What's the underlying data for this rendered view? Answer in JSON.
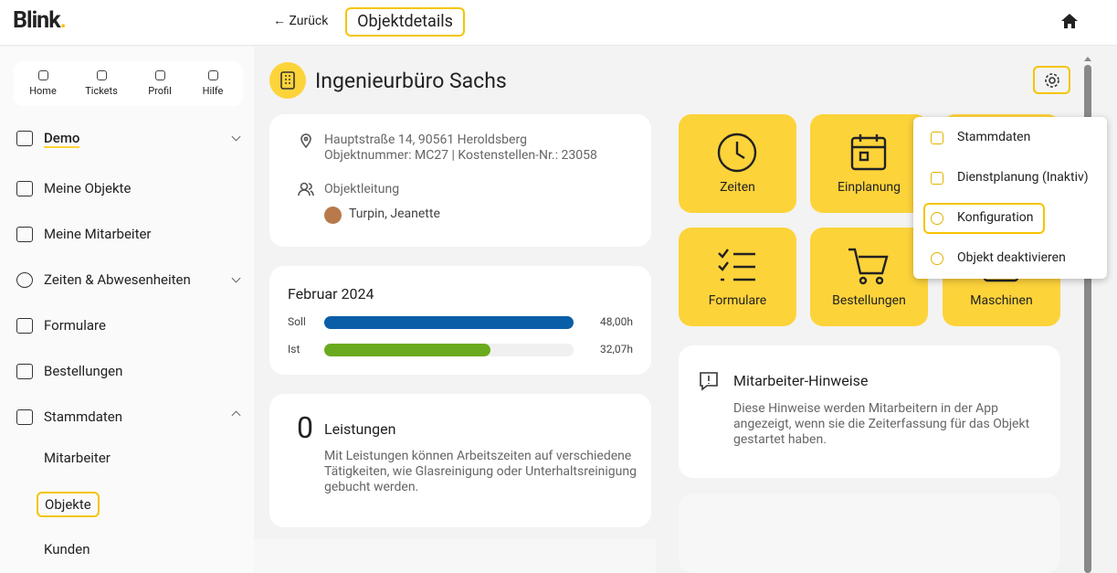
{
  "header": {
    "logo": "Blink",
    "back": "← Zurück",
    "title": "Objektdetails"
  },
  "quicknav": [
    "Home",
    "Tickets",
    "Profil",
    "Hilfe"
  ],
  "sidebar": {
    "items": [
      "Demo",
      "Meine Objekte",
      "Meine Mitarbeiter",
      "Zeiten & Abwesenheiten",
      "Formulare",
      "Bestellungen",
      "Stammdaten"
    ],
    "subitems": [
      "Mitarbeiter",
      "Objekte",
      "Kunden"
    ]
  },
  "object": {
    "name": "Ingenieurbüro Sachs"
  },
  "address": {
    "line1": "Hauptstraße 14, 90561 Heroldsberg",
    "line2": "Objektnummer: MC27 | Kostenstellen-Nr.: 23058",
    "lead_label": "Objektleitung",
    "lead_name": "Turpin, Jeanette"
  },
  "month": {
    "title": "Februar 2024",
    "rows": [
      {
        "label": "Soll",
        "value": 48.0,
        "value_label": "48,00h",
        "color": "#0a5ea8"
      },
      {
        "label": "Ist",
        "value": 32.07,
        "value_label": "32,07h",
        "color": "#6aaa1e"
      }
    ]
  },
  "services": {
    "count": 0,
    "title": "Leistungen",
    "text": "Mit Leistungen können Arbeitszeiten auf verschiedene Tätigkeiten, wie Glasreinigung oder Unterhaltsreinigung gebucht werden."
  },
  "tiles": [
    "Zeiten",
    "Einplanung",
    "Formulare",
    "Bestellungen",
    "Maschinen"
  ],
  "notes": {
    "title": "Mitarbeiter-Hinweise",
    "text": "Diese Hinweise werden Mitarbeitern in der App angezeigt, wenn sie die Zeiterfassung für das Objekt gestartet haben."
  },
  "menu": [
    "Stammdaten",
    "Dienstplanung (Inaktiv)",
    "Konfiguration",
    "Objekt deaktivieren"
  ]
}
